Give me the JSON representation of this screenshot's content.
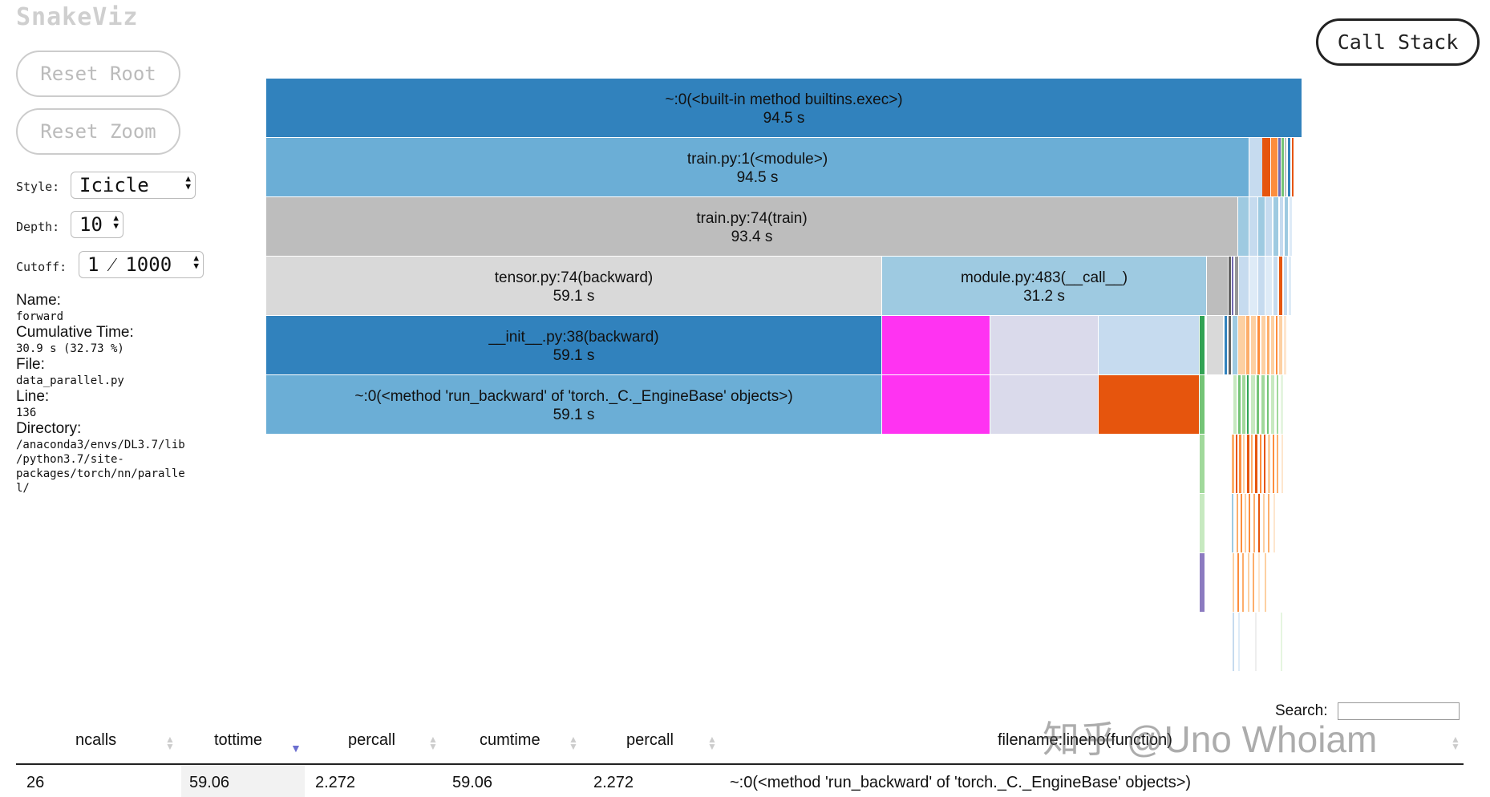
{
  "app": {
    "title": "SnakeViz"
  },
  "controls": {
    "reset_root": "Reset Root",
    "reset_zoom": "Reset Zoom",
    "call_stack": "Call Stack",
    "style_label": "Style:",
    "style_value": "Icicle",
    "depth_label": "Depth:",
    "depth_value": "10",
    "cutoff_label": "Cutoff:",
    "cutoff_value": "1 ⁄ 1000"
  },
  "info": {
    "name_label": "Name:",
    "name_value": "forward",
    "cumtime_label": "Cumulative Time:",
    "cumtime_value": "30.9 s (32.73 %)",
    "file_label": "File:",
    "file_value": "data_parallel.py",
    "line_label": "Line:",
    "line_value": "136",
    "dir_label": "Directory:",
    "dir_lines": [
      "/anaconda3/envs/DL3.7/lib",
      "/python3.7/site-",
      "packages/torch/nn/paralle",
      "l/"
    ]
  },
  "blocks": [
    {
      "name": "~:0(<built-in method builtins.exec>)",
      "time": "94.5 s",
      "color": "#3182bd"
    },
    {
      "name": "train.py:1(<module>)",
      "time": "94.5 s",
      "color": "#6baed6"
    },
    {
      "name": "train.py:74(train)",
      "time": "93.4 s",
      "color": "#bdbdbd"
    },
    {
      "name": "tensor.py:74(backward)",
      "time": "59.1 s",
      "color": "#d9d9d9"
    },
    {
      "name": "module.py:483(__call__)",
      "time": "31.2 s",
      "color": "#9ecae1"
    },
    {
      "name": "__init__.py:38(backward)",
      "time": "59.1 s",
      "color": "#3182bd"
    },
    {
      "name": "~:0(<method 'run_backward' of 'torch._C._EngineBase' objects>)",
      "time": "59.1 s",
      "color": "#6baed6"
    }
  ],
  "table": {
    "search_label": "Search:",
    "search_value": "",
    "headers": [
      "ncalls",
      "tottime",
      "percall",
      "cumtime",
      "percall",
      "filename:lineno(function)"
    ],
    "rows": [
      [
        "26",
        "59.06",
        "2.272",
        "59.06",
        "2.272",
        "~:0(<method 'run_backward' of 'torch._C._EngineBase' objects>)"
      ]
    ]
  },
  "watermark": "知乎 @Uno Whoiam"
}
